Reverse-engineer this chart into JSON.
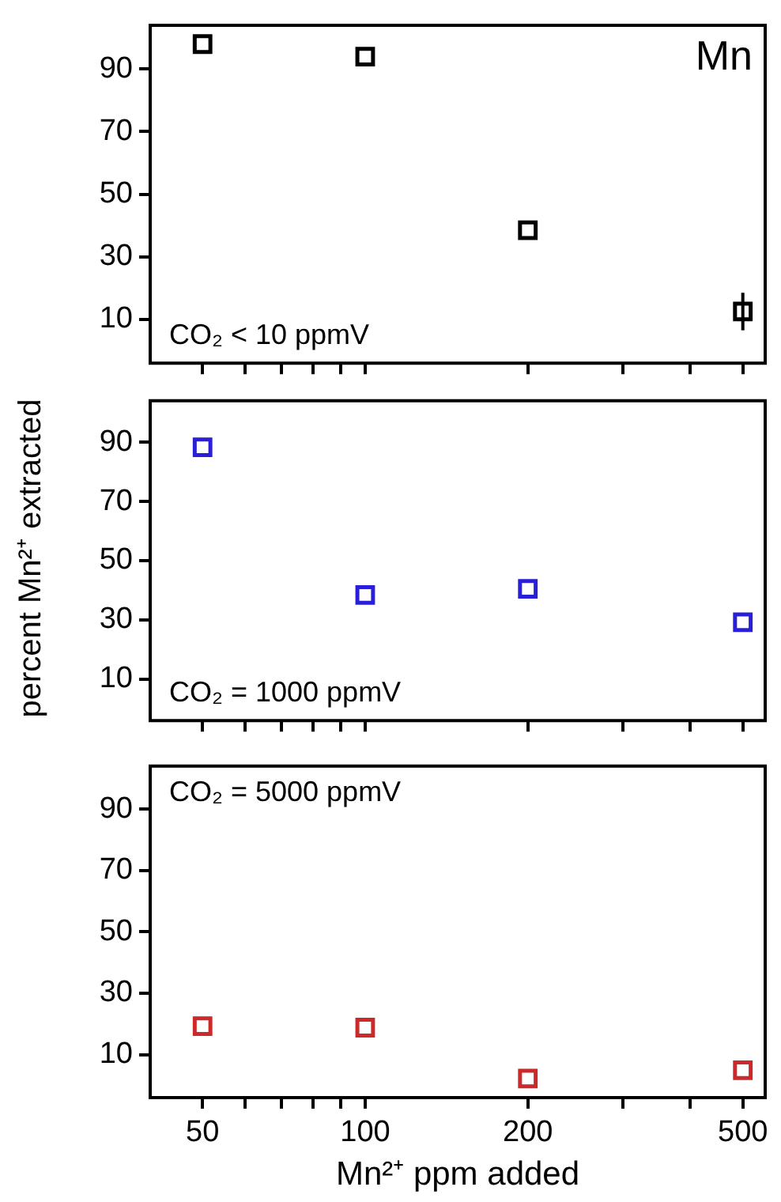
{
  "chart_data": [
    {
      "type": "scatter",
      "x": [
        50,
        100,
        200,
        500
      ],
      "marker": "square",
      "log": "x",
      "xlim": [
        40,
        550
      ],
      "xticks": [
        50,
        {
          "value": 60,
          "label": null
        },
        {
          "value": 70,
          "label": null
        },
        {
          "value": 80,
          "label": null
        },
        {
          "value": 90,
          "label": null
        },
        100,
        200,
        {
          "value": 300,
          "label": null
        },
        {
          "value": 400,
          "label": null
        },
        500
      ],
      "ylim": [
        -4,
        104
      ],
      "yticks": [
        10,
        30,
        50,
        70,
        90
      ],
      "tick_labels": "y",
      "series": [
        {
          "color": "#000000",
          "values": [
            98,
            94,
            38.5,
            12.5
          ],
          "errors": [
            null,
            null,
            null,
            6
          ]
        }
      ],
      "annotations": [
        "Mn",
        "CO₂ < 10 ppmV"
      ]
    },
    {
      "type": "scatter",
      "x": [
        50,
        100,
        200,
        500
      ],
      "marker": "square",
      "log": "x",
      "xlim": [
        40,
        550
      ],
      "xticks": [
        50,
        {
          "value": 60,
          "label": null
        },
        {
          "value": 70,
          "label": null
        },
        {
          "value": 80,
          "label": null
        },
        {
          "value": 90,
          "label": null
        },
        100,
        200,
        {
          "value": 300,
          "label": null
        },
        {
          "value": 400,
          "label": null
        },
        500
      ],
      "ylim": [
        -4,
        104
      ],
      "yticks": [
        10,
        30,
        50,
        70,
        90
      ],
      "tick_labels": "y",
      "ylabel": "percent Mn²⁺ extracted",
      "series": [
        {
          "color": "#2a1fd8",
          "values": [
            88.3,
            38.4,
            40.5,
            29.2
          ]
        }
      ],
      "annotations": [
        "CO₂ = 1000 ppmV"
      ]
    },
    {
      "type": "scatter",
      "x": [
        50,
        100,
        200,
        500
      ],
      "marker": "square",
      "log": "x",
      "xlim": [
        40,
        550
      ],
      "xticks": [
        50,
        {
          "value": 60,
          "label": null
        },
        {
          "value": 70,
          "label": null
        },
        {
          "value": 80,
          "label": null
        },
        {
          "value": 90,
          "label": null
        },
        100,
        200,
        {
          "value": 300,
          "label": null
        },
        {
          "value": 400,
          "label": null
        },
        500
      ],
      "ylim": [
        -4,
        104
      ],
      "yticks": [
        10,
        30,
        50,
        70,
        90
      ],
      "xlabel": "Mn²⁺ ppm added",
      "series": [
        {
          "color": "#cc2a2a",
          "values": [
            19.3,
            18.8,
            2.2,
            4.9
          ]
        }
      ],
      "annotations": [
        "CO₂ = 5000 ppmV"
      ]
    }
  ]
}
